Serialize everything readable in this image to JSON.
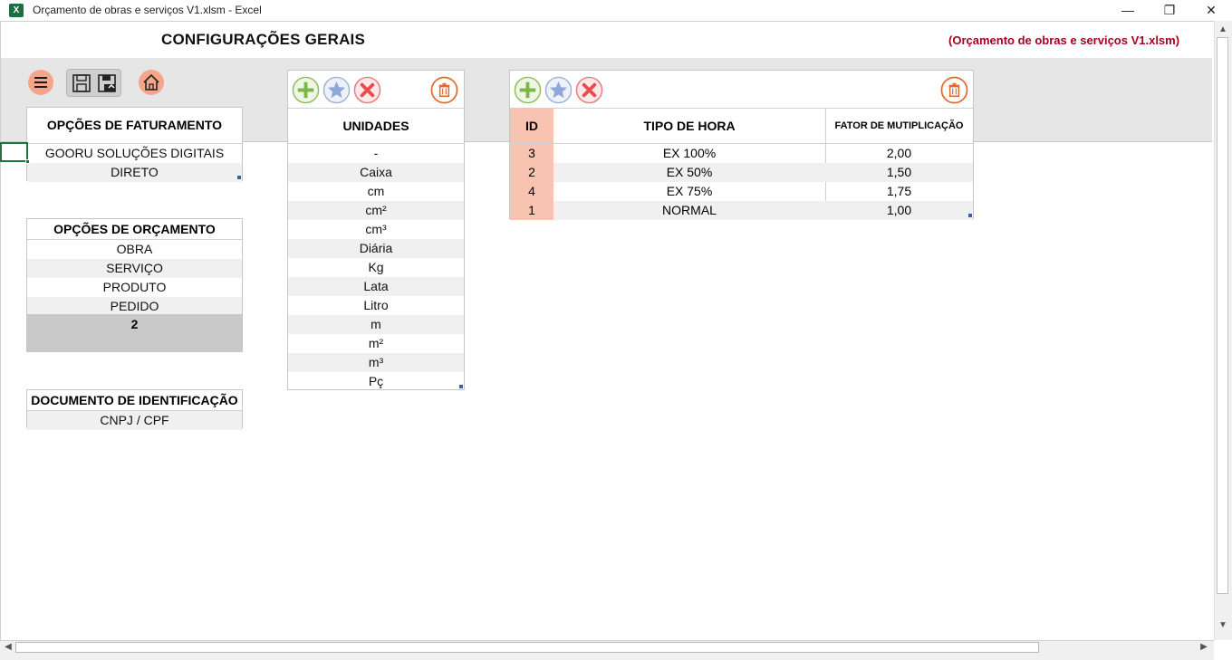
{
  "window": {
    "title": "Orçamento de obras e serviços V1.xlsm - Excel",
    "app_icon": "X",
    "minimize": "—",
    "restore": "❐",
    "close": "✕"
  },
  "header": {
    "title": "CONFIGURAÇÕES GERAIS",
    "file_ref": "(Orçamento de obras e serviços V1.xlsm)"
  },
  "faturamento": {
    "title": "OPÇÕES DE FATURAMENTO",
    "items": [
      "GOORU SOLUÇÕES DIGITAIS",
      "DIRETO"
    ]
  },
  "orcamento": {
    "title": "OPÇÕES DE ORÇAMENTO",
    "items": [
      "OBRA",
      "SERVIÇO",
      "PRODUTO",
      "PEDIDO"
    ],
    "count": "2"
  },
  "documento": {
    "title": "DOCUMENTO DE IDENTIFICAÇÃO",
    "items": [
      "CNPJ / CPF"
    ]
  },
  "unidades": {
    "title": "UNIDADES",
    "items": [
      "-",
      "Caixa",
      "cm",
      "cm²",
      "cm³",
      "Diária",
      "Kg",
      "Lata",
      "Litro",
      "m",
      "m²",
      "m³",
      "Pç"
    ]
  },
  "horas": {
    "col_id": "ID",
    "col_tipo": "TIPO DE HORA",
    "col_fator": "FATOR DE MUTIPLICAÇÃO",
    "rows": [
      {
        "id": "3",
        "tipo": "EX 100%",
        "fator": "2,00"
      },
      {
        "id": "2",
        "tipo": "EX 50%",
        "fator": "1,50"
      },
      {
        "id": "4",
        "tipo": "EX 75%",
        "fator": "1,75"
      },
      {
        "id": "1",
        "tipo": "NORMAL",
        "fator": "1,00"
      }
    ]
  },
  "colors": {
    "accent_salmon": "#f4a58a",
    "id_column": "#f8c3b0",
    "file_ref_red": "#a50021",
    "add_green": "#7ab648",
    "star_blue": "#8fa8d8",
    "delete_red": "#e84c4c",
    "trash_orange": "#e06a2e"
  },
  "icons": {
    "menu": "hamburger-icon",
    "save": "save-icon",
    "save_as": "save-as-icon",
    "home": "home-icon",
    "add": "plus-circle-icon",
    "edit": "star-circle-icon",
    "cancel": "x-circle-icon",
    "delete": "trash-icon"
  }
}
